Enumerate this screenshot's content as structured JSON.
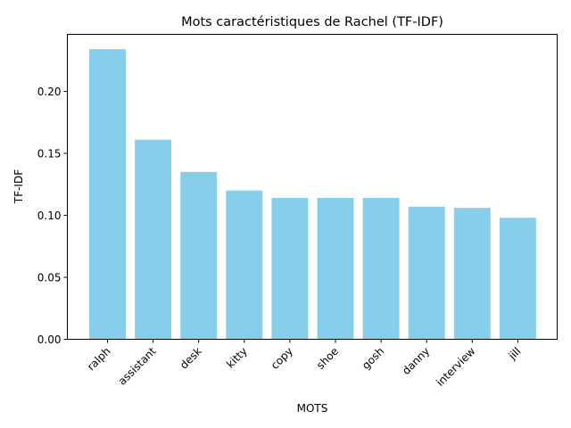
{
  "chart_data": {
    "type": "bar",
    "title": "Mots caractéristiques de Rachel (TF-IDF)",
    "xlabel": "MOTS",
    "ylabel": "TF-IDF",
    "categories": [
      "ralph",
      "assistant",
      "desk",
      "kitty",
      "copy",
      "shoe",
      "gosh",
      "danny",
      "interview",
      "jill"
    ],
    "values": [
      0.234,
      0.161,
      0.135,
      0.12,
      0.114,
      0.114,
      0.114,
      0.107,
      0.106,
      0.098
    ],
    "ylim": [
      0,
      0.246
    ],
    "yticks": [
      "0.00",
      "0.05",
      "0.10",
      "0.15",
      "0.20"
    ],
    "grid": false,
    "bar_color": "#87ceeb"
  }
}
